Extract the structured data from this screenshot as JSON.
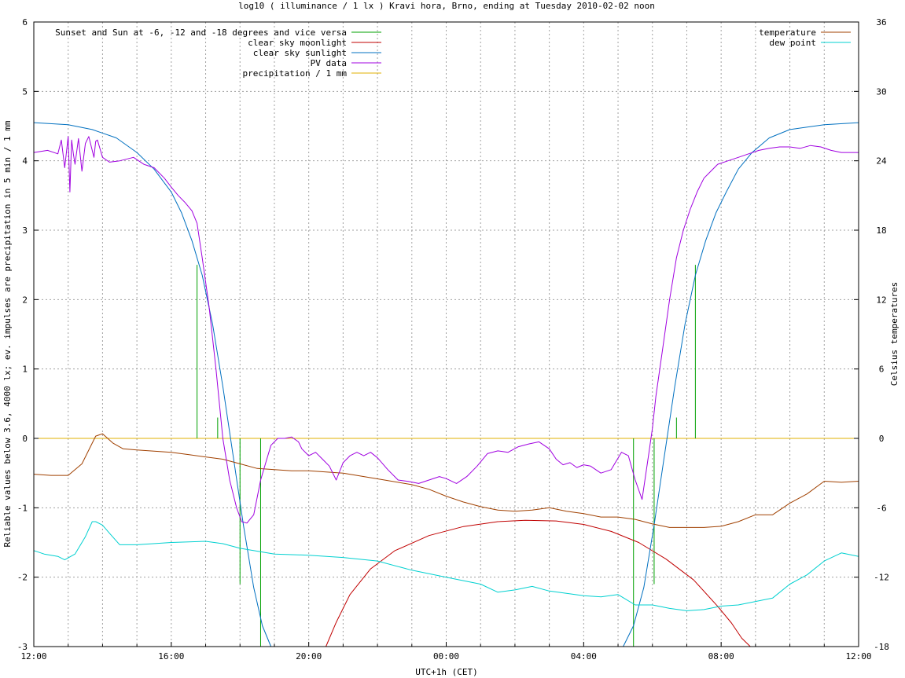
{
  "chart_data": {
    "type": "line",
    "title": "log10 ( illuminance / 1 lx ) Kravi hora, Brno, ending at Tuesday 2010-02-02 noon",
    "xlabel": "UTC+1h (CET)",
    "ylabel": "Reliable values below 3.6, 4000 lx; ev. impulses are precipitation in 5 min / 1 mm",
    "y2label": "Celsius temperatures",
    "x_unit": "hours since 12:00",
    "xlim": [
      0,
      24
    ],
    "ylim": [
      -3,
      6
    ],
    "y2lim": [
      -18,
      36
    ],
    "x_ticks": [
      {
        "pos": 0,
        "label": "12:00"
      },
      {
        "pos": 4,
        "label": "16:00"
      },
      {
        "pos": 8,
        "label": "20:00"
      },
      {
        "pos": 12,
        "label": "00:00"
      },
      {
        "pos": 16,
        "label": "04:00"
      },
      {
        "pos": 20,
        "label": "08:00"
      },
      {
        "pos": 24,
        "label": "12:00"
      }
    ],
    "y_ticks": [
      "-3",
      "-2",
      "-1",
      "0",
      "1",
      "2",
      "3",
      "4",
      "5",
      "6"
    ],
    "y_tick_values": [
      -3,
      -2,
      -1,
      0,
      1,
      2,
      3,
      4,
      5,
      6
    ],
    "y2_ticks": [
      "-18",
      "-12",
      "-6",
      "0",
      "6",
      "12",
      "18",
      "24",
      "30",
      "36"
    ],
    "y2_tick_values": [
      -18,
      -12,
      -6,
      0,
      6,
      12,
      18,
      24,
      30,
      36
    ],
    "grid": true,
    "legend_left": "top-left",
    "legend_right": "top-right",
    "sun_markers": [
      {
        "x": 4.75,
        "top": 2.5
      },
      {
        "x": 5.35,
        "top": 0.3
      },
      {
        "x": 6.0,
        "top": -2.1
      },
      {
        "x": 6.6,
        "top": -3.0
      },
      {
        "x": 17.45,
        "top": -3.0
      },
      {
        "x": 18.05,
        "top": -2.1
      },
      {
        "x": 18.7,
        "top": 0.3
      },
      {
        "x": 19.25,
        "top": 2.5
      }
    ],
    "series": [
      {
        "name": "Sunset and Sun at -6, -12 and -18 degrees and vice versa",
        "color": "#00a000",
        "axis": "y",
        "kind": "impulses"
      },
      {
        "name": "clear sky moonlight",
        "color": "#c00000",
        "axis": "y",
        "x": [
          8.5,
          8.8,
          9.2,
          9.8,
          10.5,
          11.5,
          12.5,
          13.5,
          14.3,
          15.2,
          16.0,
          16.8,
          17.6,
          18.4,
          19.2,
          19.9,
          20.3,
          20.6,
          20.85
        ],
        "y": [
          -3.05,
          -2.65,
          -2.25,
          -1.88,
          -1.62,
          -1.4,
          -1.27,
          -1.2,
          -1.18,
          -1.19,
          -1.24,
          -1.34,
          -1.5,
          -1.74,
          -2.04,
          -2.42,
          -2.66,
          -2.88,
          -3.05
        ]
      },
      {
        "name": "clear sky sunlight",
        "color": "#0070c0",
        "axis": "y",
        "x": [
          0,
          1,
          1.7,
          2.4,
          3.0,
          3.5,
          4.0,
          4.3,
          4.6,
          4.9,
          5.2,
          5.5,
          5.8,
          6.1,
          6.4,
          6.65,
          6.9,
          17.15,
          17.45,
          17.75,
          18.05,
          18.35,
          18.65,
          18.95,
          19.25,
          19.55,
          19.85,
          20.15,
          20.5,
          20.9,
          21.4,
          22.0,
          23.0,
          24.0
        ],
        "y": [
          4.55,
          4.52,
          4.45,
          4.33,
          4.12,
          3.88,
          3.55,
          3.25,
          2.85,
          2.35,
          1.65,
          0.75,
          -0.25,
          -1.25,
          -2.15,
          -2.7,
          -3.05,
          -3.05,
          -2.7,
          -2.15,
          -1.25,
          -0.25,
          0.75,
          1.65,
          2.35,
          2.85,
          3.25,
          3.55,
          3.88,
          4.12,
          4.33,
          4.45,
          4.52,
          4.55
        ]
      },
      {
        "name": "PV data",
        "color": "#a000e0",
        "axis": "y",
        "x": [
          0,
          0.4,
          0.7,
          0.8,
          0.9,
          1.0,
          1.05,
          1.1,
          1.15,
          1.2,
          1.3,
          1.4,
          1.5,
          1.6,
          1.75,
          1.8,
          1.85,
          2.0,
          2.2,
          2.5,
          2.9,
          3.2,
          3.5,
          3.8,
          4.0,
          4.2,
          4.4,
          4.6,
          4.75,
          4.9,
          5.1,
          5.3,
          5.5,
          5.7,
          5.9,
          6.05,
          6.2,
          6.4,
          6.6,
          6.75,
          6.9,
          7.1,
          7.3,
          7.5,
          7.7,
          7.8,
          8.0,
          8.2,
          8.4,
          8.6,
          8.8,
          9.0,
          9.2,
          9.4,
          9.6,
          9.8,
          10.0,
          10.3,
          10.6,
          10.9,
          11.2,
          11.5,
          11.8,
          12.0,
          12.3,
          12.6,
          12.9,
          13.2,
          13.5,
          13.8,
          14.1,
          14.4,
          14.7,
          15.0,
          15.2,
          15.4,
          15.6,
          15.8,
          16.0,
          16.2,
          16.5,
          16.8,
          17.1,
          17.3,
          17.5,
          17.7,
          17.9,
          18.0,
          18.1,
          18.3,
          18.5,
          18.7,
          18.9,
          19.1,
          19.3,
          19.5,
          19.7,
          19.9,
          20.2,
          20.5,
          20.8,
          21.1,
          21.4,
          21.7,
          22.0,
          22.3,
          22.6,
          22.9,
          23.2,
          23.5,
          24.0
        ],
        "y": [
          4.12,
          4.15,
          4.1,
          4.3,
          3.9,
          4.35,
          3.55,
          4.3,
          4.1,
          3.95,
          4.32,
          3.85,
          4.25,
          4.35,
          4.05,
          4.28,
          4.3,
          4.05,
          3.98,
          4.0,
          4.05,
          3.95,
          3.9,
          3.75,
          3.62,
          3.5,
          3.4,
          3.28,
          3.1,
          2.6,
          1.9,
          1.0,
          0.0,
          -0.6,
          -1.0,
          -1.2,
          -1.22,
          -1.1,
          -0.6,
          -0.35,
          -0.1,
          0.0,
          0.0,
          0.02,
          -0.05,
          -0.15,
          -0.25,
          -0.2,
          -0.3,
          -0.4,
          -0.6,
          -0.35,
          -0.25,
          -0.2,
          -0.25,
          -0.2,
          -0.28,
          -0.45,
          -0.6,
          -0.62,
          -0.65,
          -0.6,
          -0.55,
          -0.58,
          -0.65,
          -0.55,
          -0.4,
          -0.22,
          -0.18,
          -0.2,
          -0.12,
          -0.08,
          -0.05,
          -0.15,
          -0.3,
          -0.38,
          -0.35,
          -0.42,
          -0.38,
          -0.4,
          -0.5,
          -0.45,
          -0.2,
          -0.25,
          -0.6,
          -0.88,
          -0.2,
          0.15,
          0.6,
          1.3,
          2.0,
          2.6,
          3.0,
          3.3,
          3.55,
          3.75,
          3.85,
          3.95,
          4.0,
          4.05,
          4.1,
          4.15,
          4.18,
          4.2,
          4.2,
          4.18,
          4.22,
          4.2,
          4.15,
          4.12,
          4.12
        ]
      },
      {
        "name": "precipitation / 1 mm",
        "color": "#e0b000",
        "axis": "y",
        "x": [
          0,
          24
        ],
        "y": [
          0,
          0
        ]
      },
      {
        "name": "temperature",
        "color": "#a04000",
        "axis": "y2",
        "x": [
          0,
          0.5,
          1.0,
          1.4,
          1.8,
          2.0,
          2.3,
          2.6,
          3.0,
          3.5,
          4.0,
          4.5,
          5.0,
          5.5,
          6.0,
          6.5,
          7.0,
          7.5,
          8.0,
          9.0,
          10.0,
          11.0,
          11.5,
          12.0,
          12.5,
          13.0,
          13.5,
          14.0,
          14.5,
          15.0,
          15.5,
          16.0,
          16.5,
          17.0,
          17.5,
          18.0,
          18.5,
          19.0,
          19.5,
          20.0,
          20.5,
          21.0,
          21.5,
          22.0,
          22.5,
          23.0,
          23.5,
          24.0
        ],
        "y": [
          -3.1,
          -3.2,
          -3.2,
          -2.2,
          0.2,
          0.4,
          -0.4,
          -0.9,
          -1.0,
          -1.1,
          -1.2,
          -1.4,
          -1.6,
          -1.8,
          -2.2,
          -2.6,
          -2.7,
          -2.8,
          -2.8,
          -3.0,
          -3.5,
          -4.0,
          -4.4,
          -5.0,
          -5.5,
          -5.9,
          -6.2,
          -6.3,
          -6.2,
          -6.0,
          -6.3,
          -6.5,
          -6.8,
          -6.8,
          -7.0,
          -7.4,
          -7.7,
          -7.7,
          -7.7,
          -7.6,
          -7.2,
          -6.6,
          -6.6,
          -5.6,
          -4.8,
          -3.7,
          -3.8,
          -3.7
        ]
      },
      {
        "name": "dew point",
        "color": "#00d0d0",
        "axis": "y2",
        "x": [
          0,
          0.3,
          0.7,
          0.9,
          1.2,
          1.5,
          1.7,
          1.8,
          2.0,
          2.2,
          2.5,
          3.0,
          4.0,
          5.0,
          5.5,
          6.0,
          7.0,
          8.0,
          9.0,
          10.0,
          11.0,
          12.0,
          13.0,
          13.5,
          14.0,
          14.5,
          15.0,
          16.0,
          16.5,
          17.0,
          17.5,
          18.0,
          18.5,
          19.0,
          19.5,
          20.0,
          20.5,
          21.0,
          21.5,
          22.0,
          22.5,
          23.0,
          23.5,
          24.0
        ],
        "y": [
          -9.7,
          -10.0,
          -10.2,
          -10.5,
          -10.0,
          -8.5,
          -7.2,
          -7.2,
          -7.5,
          -8.2,
          -9.2,
          -9.2,
          -9.0,
          -8.9,
          -9.1,
          -9.5,
          -10.0,
          -10.1,
          -10.3,
          -10.6,
          -11.4,
          -12.0,
          -12.6,
          -13.3,
          -13.1,
          -12.8,
          -13.2,
          -13.6,
          -13.7,
          -13.5,
          -14.4,
          -14.4,
          -14.7,
          -14.9,
          -14.8,
          -14.5,
          -14.4,
          -14.1,
          -13.8,
          -12.6,
          -11.8,
          -10.6,
          -9.9,
          -10.2
        ]
      }
    ]
  }
}
